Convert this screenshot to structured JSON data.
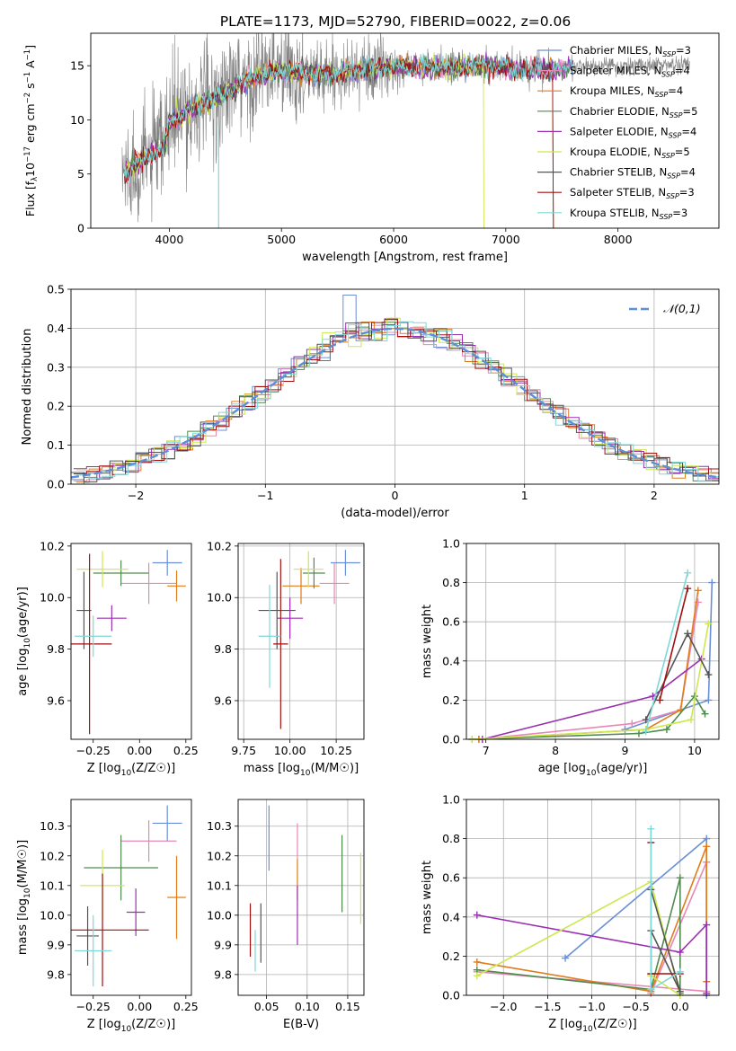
{
  "title": "PLATE=1173, MJD=52790, FIBERID=0022, z=0.06",
  "legend_models": [
    {
      "label": "Chabrier MILES, N",
      "sub": "SSP",
      "suffix": "=3",
      "color": "#6a8fd6"
    },
    {
      "label": "Salpeter MILES, N",
      "sub": "SSP",
      "suffix": "=4",
      "color": "#e887b7"
    },
    {
      "label": "Kroupa MILES, N",
      "sub": "SSP",
      "suffix": "=4",
      "color": "#e07c1c"
    },
    {
      "label": "Chabrier ELODIE, N",
      "sub": "SSP",
      "suffix": "=5",
      "color": "#4f8a4f"
    },
    {
      "label": "Salpeter ELODIE, N",
      "sub": "SSP",
      "suffix": "=4",
      "color": "#9b2fb1"
    },
    {
      "label": "Kroupa ELODIE, N",
      "sub": "SSP",
      "suffix": "=5",
      "color": "#cde84e"
    },
    {
      "label": "Chabrier STELIB, N",
      "sub": "SSP",
      "suffix": "=4",
      "color": "#555555"
    },
    {
      "label": "Salpeter STELIB, N",
      "sub": "SSP",
      "suffix": "=3",
      "color": "#a01010"
    },
    {
      "label": "Kroupa STELIB, N",
      "sub": "SSP",
      "suffix": "=3",
      "color": "#7dd8d8"
    }
  ],
  "chart_data": [
    {
      "id": "spectrum",
      "type": "line",
      "xlabel": "wavelength [Angstrom, rest frame]",
      "ylabel": "Flux [f_λ10^-17 erg cm^-2 s^-1 A^-1]",
      "xlim": [
        3300,
        8900
      ],
      "ylim": [
        0,
        18
      ],
      "xticks": [
        4000,
        5000,
        6000,
        7000,
        8000
      ],
      "yticks": [
        0,
        5,
        10,
        15
      ],
      "grid": false,
      "legend_placement": "right",
      "data_color": "#808080",
      "data_range": [
        3580,
        8640
      ],
      "model_anchor_wavelength": [
        3600,
        3800,
        3950,
        4000,
        4200,
        4500,
        4800,
        5000,
        5300,
        5600,
        6000,
        6400,
        6800,
        7200,
        7500,
        7600
      ],
      "model_anchor_flux": [
        5.1,
        6.5,
        7.5,
        9.8,
        11.0,
        12.5,
        14.2,
        14.5,
        14.2,
        14.5,
        15.0,
        14.8,
        15.0,
        14.6,
        14.7,
        15.0
      ]
    },
    {
      "id": "residuals",
      "type": "histogram",
      "xlabel": "(data-model)/error",
      "ylabel": "Normed distribution",
      "xlim": [
        -2.5,
        2.5
      ],
      "ylim": [
        0,
        0.5
      ],
      "xticks": [
        -2,
        -1,
        0,
        1,
        2
      ],
      "yticks": [
        0.0,
        0.1,
        0.2,
        0.3,
        0.4,
        0.5
      ],
      "grid": true,
      "legend": "𝒩(0,1)",
      "legend_placement": "top-right",
      "bin_width": 0.1,
      "gaussian": {
        "mean": 0,
        "sigma": 1,
        "color": "#5b8fd9"
      }
    },
    {
      "id": "z-age",
      "type": "scatter",
      "xlabel": "Z [log10(Z/Z☉)]",
      "ylabel": "age [log10(age/yr)]",
      "xlim": [
        -0.37,
        0.28
      ],
      "ylim": [
        9.45,
        10.21
      ],
      "xticks": [
        -0.25,
        0.0,
        0.25
      ],
      "yticks": [
        9.6,
        9.8,
        10.0,
        10.2
      ],
      "grid": false,
      "points": [
        {
          "x": 0.15,
          "y": 10.135,
          "xerr": 0.08,
          "yerr": 0.05,
          "color": "#6a8fd6"
        },
        {
          "x": 0.05,
          "y": 10.055,
          "xerr": 0.15,
          "yerr": 0.08,
          "color": "#e887b7"
        },
        {
          "x": 0.2,
          "y": 10.045,
          "xerr": 0.05,
          "yerr": 0.06,
          "color": "#e07c1c"
        },
        {
          "x": -0.1,
          "y": 10.095,
          "xerr": 0.15,
          "yerr": 0.05,
          "color": "#4f8a4f"
        },
        {
          "x": -0.15,
          "y": 9.92,
          "xerr": 0.08,
          "yerr": 0.05,
          "color": "#9b2fb1"
        },
        {
          "x": -0.2,
          "y": 10.11,
          "xerr": 0.14,
          "yerr": 0.07,
          "color": "#cde84e"
        },
        {
          "x": -0.3,
          "y": 9.95,
          "xerr": 0.04,
          "yerr": 0.15,
          "color": "#555555"
        },
        {
          "x": -0.27,
          "y": 9.82,
          "xerr": 0.12,
          "yerr": 0.35,
          "color": "#a01010"
        },
        {
          "x": -0.25,
          "y": 9.85,
          "xerr": 0.1,
          "yerr": 0.08,
          "color": "#7dd8d8"
        }
      ]
    },
    {
      "id": "mass-age",
      "type": "scatter",
      "xlabel": "mass [log10(M/M☉)]",
      "ylabel": "",
      "xlim": [
        9.72,
        10.4
      ],
      "ylim": [
        9.45,
        10.21
      ],
      "xticks": [
        9.75,
        10.0,
        10.25
      ],
      "yticks": [
        9.6,
        9.8,
        10.0,
        10.2
      ],
      "grid": true,
      "points": [
        {
          "x": 10.3,
          "y": 10.135,
          "xerr": 0.08,
          "yerr": 0.05,
          "color": "#6a8fd6"
        },
        {
          "x": 10.24,
          "y": 10.055,
          "xerr": 0.08,
          "yerr": 0.08,
          "color": "#e887b7"
        },
        {
          "x": 10.06,
          "y": 10.045,
          "xerr": 0.1,
          "yerr": 0.07,
          "color": "#e07c1c"
        },
        {
          "x": 10.13,
          "y": 10.095,
          "xerr": 0.06,
          "yerr": 0.06,
          "color": "#4f8a4f"
        },
        {
          "x": 10.0,
          "y": 9.92,
          "xerr": 0.07,
          "yerr": 0.08,
          "color": "#9b2fb1"
        },
        {
          "x": 10.1,
          "y": 10.11,
          "xerr": 0.08,
          "yerr": 0.07,
          "color": "#cde84e"
        },
        {
          "x": 9.93,
          "y": 9.95,
          "xerr": 0.1,
          "yerr": 0.15,
          "color": "#555555"
        },
        {
          "x": 9.95,
          "y": 9.82,
          "xerr": 0.04,
          "yerr": 0.33,
          "color": "#a01010"
        },
        {
          "x": 9.89,
          "y": 9.85,
          "xerr": 0.06,
          "yerr": 0.2,
          "color": "#7dd8d8"
        }
      ]
    },
    {
      "id": "age-weight",
      "type": "line",
      "xlabel": "age [log10(age/yr)]",
      "ylabel": "mass weight",
      "xlim": [
        6.72,
        10.35
      ],
      "ylim": [
        0.0,
        1.0
      ],
      "xticks": [
        7,
        8,
        9,
        10
      ],
      "yticks": [
        0.0,
        0.2,
        0.4,
        0.6,
        0.8,
        1.0
      ],
      "grid": true,
      "series": [
        {
          "color": "#6a8fd6",
          "x": [
            9.0,
            10.2,
            10.25
          ],
          "y": [
            0.05,
            0.2,
            0.8
          ]
        },
        {
          "color": "#e887b7",
          "x": [
            6.9,
            9.1,
            9.8,
            10.05
          ],
          "y": [
            0.0,
            0.08,
            0.15,
            0.7
          ]
        },
        {
          "color": "#e07c1c",
          "x": [
            6.9,
            9.3,
            9.8,
            10.05
          ],
          "y": [
            0.0,
            0.05,
            0.15,
            0.76
          ]
        },
        {
          "color": "#4f8a4f",
          "x": [
            6.8,
            9.2,
            9.6,
            10.0,
            10.15
          ],
          "y": [
            0.0,
            0.03,
            0.05,
            0.22,
            0.13
          ]
        },
        {
          "color": "#9b2fb1",
          "x": [
            6.95,
            9.4,
            10.1
          ],
          "y": [
            0.0,
            0.22,
            0.41
          ]
        },
        {
          "color": "#cde84e",
          "x": [
            6.8,
            9.3,
            9.95,
            10.2
          ],
          "y": [
            0.0,
            0.05,
            0.1,
            0.59
          ]
        },
        {
          "color": "#555555",
          "x": [
            9.3,
            9.9,
            10.2
          ],
          "y": [
            0.1,
            0.54,
            0.33
          ]
        },
        {
          "color": "#a01010",
          "x": [
            9.5,
            9.9
          ],
          "y": [
            0.2,
            0.77
          ]
        },
        {
          "color": "#7dd8d8",
          "x": [
            9.3,
            9.9
          ],
          "y": [
            0.04,
            0.85
          ]
        }
      ]
    },
    {
      "id": "z-mass",
      "type": "scatter",
      "xlabel": "Z [log10(Z/Z☉)]",
      "ylabel": "mass [log10(M/M☉)]",
      "xlim": [
        -0.37,
        0.28
      ],
      "ylim": [
        9.73,
        10.39
      ],
      "xticks": [
        -0.25,
        0.0,
        0.25
      ],
      "yticks": [
        9.8,
        9.9,
        10.0,
        10.1,
        10.2,
        10.3
      ],
      "grid": false,
      "points": [
        {
          "x": 0.15,
          "y": 10.31,
          "xerr": 0.08,
          "yerr": 0.06,
          "color": "#6a8fd6"
        },
        {
          "x": 0.05,
          "y": 10.25,
          "xerr": 0.15,
          "yerr": 0.07,
          "color": "#e887b7"
        },
        {
          "x": 0.2,
          "y": 10.06,
          "xerr": 0.05,
          "yerr": 0.14,
          "color": "#e07c1c"
        },
        {
          "x": -0.1,
          "y": 10.16,
          "xerr": 0.2,
          "yerr": 0.11,
          "color": "#4f8a4f"
        },
        {
          "x": -0.02,
          "y": 10.01,
          "xerr": 0.05,
          "yerr": 0.08,
          "color": "#9b2fb1"
        },
        {
          "x": -0.2,
          "y": 10.1,
          "xerr": 0.12,
          "yerr": 0.12,
          "color": "#cde84e"
        },
        {
          "x": -0.28,
          "y": 9.93,
          "xerr": 0.06,
          "yerr": 0.1,
          "color": "#555555"
        },
        {
          "x": -0.2,
          "y": 9.95,
          "xerr": 0.25,
          "yerr": 0.19,
          "color": "#a01010"
        },
        {
          "x": -0.25,
          "y": 9.88,
          "xerr": 0.1,
          "yerr": 0.12,
          "color": "#7dd8d8"
        }
      ]
    },
    {
      "id": "ebv-mass",
      "type": "scatter",
      "xlabel": "E(B-V)",
      "ylabel": "",
      "xlim": [
        0.015,
        0.17
      ],
      "ylim": [
        9.73,
        10.39
      ],
      "xticks": [
        0.05,
        0.1,
        0.15
      ],
      "yticks": [
        9.8,
        9.9,
        10.0,
        10.1,
        10.2,
        10.3
      ],
      "grid": true,
      "points": [
        {
          "x": 0.053,
          "y": 10.26,
          "xerr": 0,
          "yerr": 0.11,
          "color": "#6a8fd6"
        },
        {
          "x": 0.088,
          "y": 10.25,
          "xerr": 0,
          "yerr": 0.06,
          "color": "#e887b7"
        },
        {
          "x": 0.088,
          "y": 10.12,
          "xerr": 0,
          "yerr": 0.07,
          "color": "#e07c1c"
        },
        {
          "x": 0.143,
          "y": 10.14,
          "xerr": 0,
          "yerr": 0.13,
          "color": "#4f8a4f"
        },
        {
          "x": 0.088,
          "y": 10.0,
          "xerr": 0,
          "yerr": 0.1,
          "color": "#9b2fb1"
        },
        {
          "x": 0.166,
          "y": 10.09,
          "xerr": 0,
          "yerr": 0.12,
          "color": "#cde84e"
        },
        {
          "x": 0.043,
          "y": 9.94,
          "xerr": 0,
          "yerr": 0.1,
          "color": "#555555"
        },
        {
          "x": 0.03,
          "y": 9.95,
          "xerr": 0,
          "yerr": 0.09,
          "color": "#a01010"
        },
        {
          "x": 0.036,
          "y": 9.88,
          "xerr": 0,
          "yerr": 0.07,
          "color": "#7dd8d8"
        }
      ]
    },
    {
      "id": "z-weight",
      "type": "line",
      "xlabel": "Z [log10(Z/Z☉)]",
      "ylabel": "mass weight",
      "xlim": [
        -2.42,
        0.44
      ],
      "ylim": [
        0.0,
        1.0
      ],
      "xticks": [
        -2.0,
        -1.5,
        -1.0,
        -0.5,
        0.0
      ],
      "yticks": [
        0.0,
        0.2,
        0.4,
        0.6,
        0.8,
        1.0
      ],
      "grid": true,
      "series": [
        {
          "color": "#6a8fd6",
          "x": [
            -1.3,
            0.3,
            0.3
          ],
          "y": [
            0.19,
            0.8,
            0.0
          ]
        },
        {
          "color": "#e887b7",
          "x": [
            -2.3,
            0.3,
            0.3,
            -0.33
          ],
          "y": [
            0.12,
            0.02,
            0.68,
            0.01
          ]
        },
        {
          "color": "#e07c1c",
          "x": [
            -2.3,
            -0.33,
            0.3,
            0.3
          ],
          "y": [
            0.17,
            0.02,
            0.76,
            0.07
          ]
        },
        {
          "color": "#4f8a4f",
          "x": [
            -2.3,
            -0.33,
            0.0,
            0.0
          ],
          "y": [
            0.13,
            0.03,
            0.6,
            0.01
          ]
        },
        {
          "color": "#9b2fb1",
          "x": [
            -2.3,
            0.0,
            0.3,
            0.3
          ],
          "y": [
            0.41,
            0.22,
            0.36,
            0.01
          ]
        },
        {
          "color": "#cde84e",
          "x": [
            -2.3,
            -0.33,
            0.0,
            -0.33
          ],
          "y": [
            0.1,
            0.58,
            0.0,
            0.1
          ]
        },
        {
          "color": "#555555",
          "x": [
            -0.33,
            0.0,
            -0.33,
            -0.33
          ],
          "y": [
            0.54,
            0.02,
            0.33,
            0.11
          ]
        },
        {
          "color": "#a01010",
          "x": [
            -0.33,
            -0.33,
            0.0
          ],
          "y": [
            0.78,
            0.11,
            0.11
          ]
        },
        {
          "color": "#7dd8d8",
          "x": [
            -0.33,
            -0.33,
            0.0
          ],
          "y": [
            0.85,
            0.03,
            0.12
          ]
        }
      ]
    }
  ]
}
